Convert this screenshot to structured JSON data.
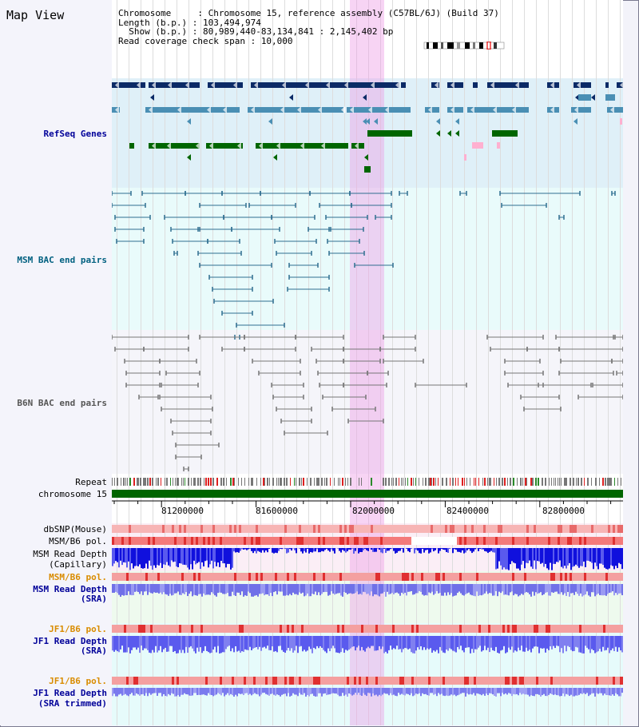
{
  "title": "Map View",
  "header": {
    "chromosome_key": "Chromosome     : ",
    "chromosome": "Chromosome 15, reference assembly (C57BL/6J) (Build 37)",
    "length_key": "Length (b.p.) : ",
    "length": "103,494,974",
    "show_key": "  Show (b.p.) : ",
    "show": "80,989,440-83,134,841 : 2,145,402 bp",
    "coverage_key": "Read coverage check span : ",
    "coverage": "10,000"
  },
  "tracks": {
    "refseq": "RefSeq Genes",
    "msm_bac": "MSM BAC end pairs",
    "b6n_bac": "B6N BAC end pairs",
    "repeat": "Repeat",
    "chromosome": "chromosome 15",
    "dbsnp": "dbSNP(Mouse)",
    "msm_b6_pol": "MSM/B6 pol.",
    "msm_depth_cap_1": "MSM Read Depth",
    "msm_depth_cap_2": "(Capillary)",
    "msm_b6_pol2": "MSM/B6 pol.",
    "msm_depth_sra_1": "MSM Read Depth",
    "msm_depth_sra_2": "(SRA)",
    "jf1_pol": "JF1/B6 pol.",
    "jf1_depth_1": "JF1 Read Depth",
    "jf1_depth_2": "(SRA)",
    "jf1_pol2": "JF1/B6 pol.",
    "jf1_trim_1": "JF1 Read Depth",
    "jf1_trim_2": "(SRA trimmed)"
  },
  "axis": {
    "ticks": [
      "81200000",
      "81600000",
      "82000000",
      "82400000",
      "82800000"
    ]
  },
  "colors": {
    "refseq_bg": "#dff0f8",
    "msm_bg": "#e9fbfb",
    "b6n_bg": "#f5f5fa",
    "navy": "#0b2a66",
    "steel": "#4a8fb4",
    "green": "#006600",
    "highlight": "#f4c8ee"
  }
}
